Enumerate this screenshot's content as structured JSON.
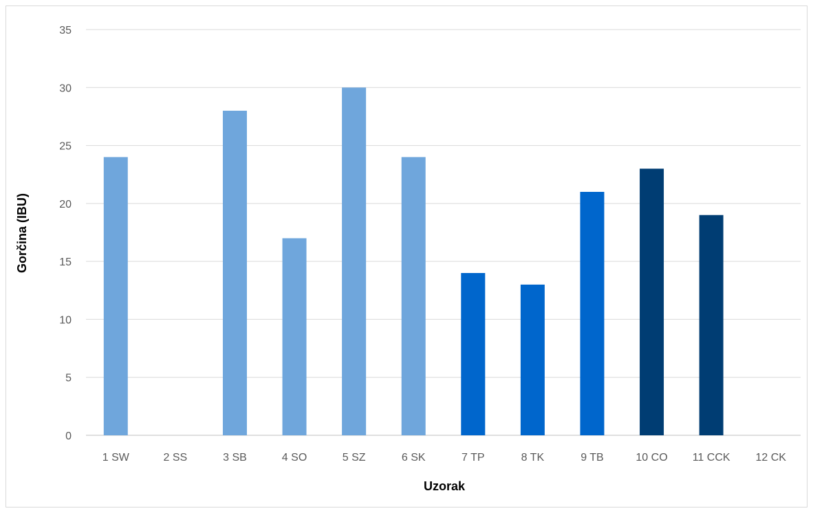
{
  "chart_data": {
    "type": "bar",
    "title": "",
    "xlabel": "Uzorak",
    "ylabel": "Gorčina (IBU)",
    "ylim": [
      0,
      35
    ],
    "yticks": [
      0,
      5,
      10,
      15,
      20,
      25,
      30,
      35
    ],
    "grid": true,
    "legend": "none",
    "categories": [
      "1 SW",
      "2 SS",
      "3 SB",
      "4 SO",
      "5 SZ",
      "6 SK",
      "7 TP",
      "8 TK",
      "9 TB",
      "10 CO",
      "11 CCK",
      "12 CK"
    ],
    "values": [
      24,
      0,
      28,
      17,
      30,
      24,
      14,
      13,
      21,
      23,
      19,
      0
    ],
    "bar_colors": [
      "#6fa6dc",
      "#6fa6dc",
      "#6fa6dc",
      "#6fa6dc",
      "#6fa6dc",
      "#6fa6dc",
      "#0066cc",
      "#0066cc",
      "#0066cc",
      "#003d73",
      "#003d73",
      "#003d73"
    ],
    "colors": {
      "gridline": "#d9d9d9",
      "axis_line": "#bfbfbf",
      "tick_text": "#595959"
    }
  }
}
